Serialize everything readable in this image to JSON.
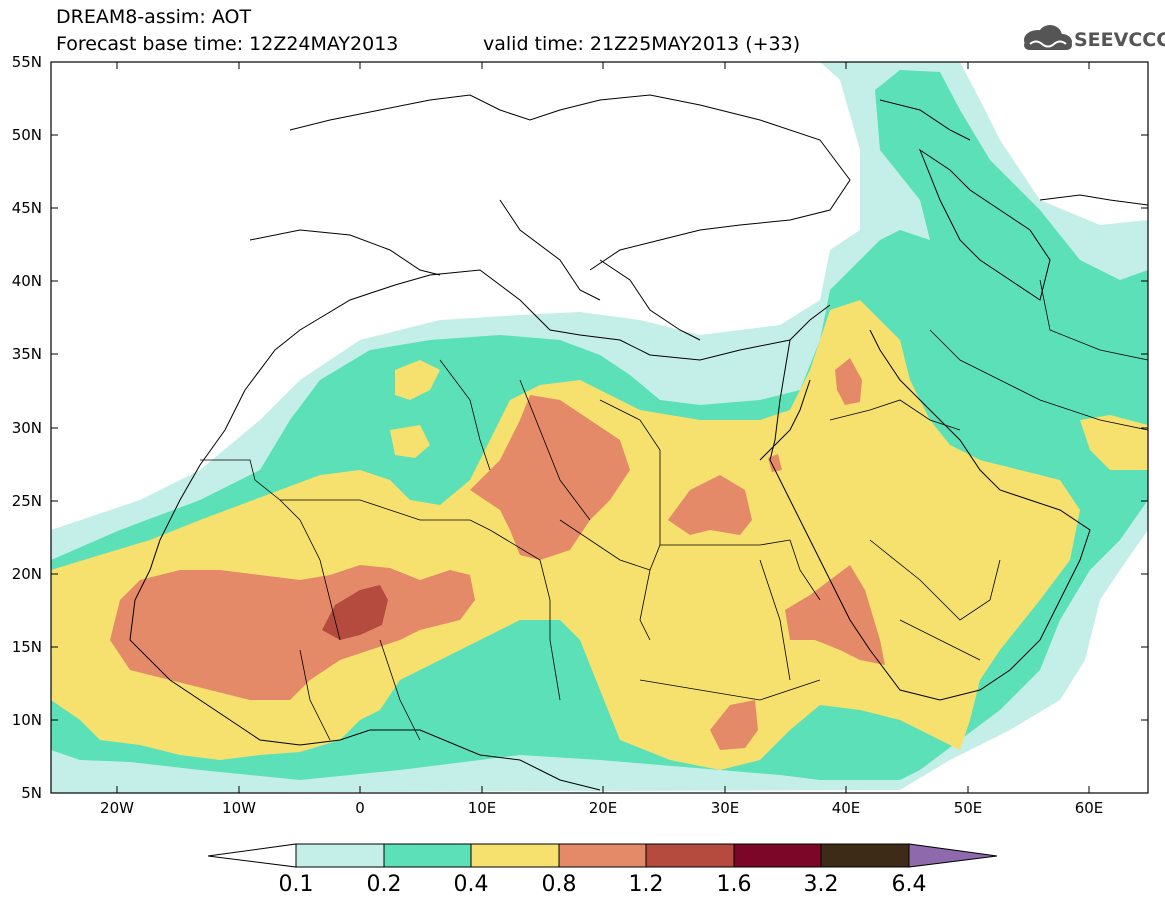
{
  "header": {
    "model_title": "DREAM8-assim: AOT",
    "forecast_base": "Forecast base time: 12Z24MAY2013",
    "valid_time": "valid time: 21Z25MAY2013 (+33)"
  },
  "logo": {
    "text": "SEEVCCC",
    "icon": "cloud-icon"
  },
  "map": {
    "lat_labels": [
      "55N",
      "50N",
      "45N",
      "40N",
      "35N",
      "30N",
      "25N",
      "20N",
      "15N",
      "10N",
      "5N"
    ],
    "lon_labels": [
      "20W",
      "10W",
      "0",
      "10E",
      "20E",
      "30E",
      "40E",
      "50E",
      "60E"
    ],
    "field_colors": {
      "level_0_1": "#c3efe8",
      "level_0_2": "#5ce0b8",
      "level_0_4": "#f6e06e",
      "level_0_8": "#e58a69",
      "level_1_2": "#b54b3e",
      "level_1_6": "#7c0628",
      "level_3_2": "#3d2a17",
      "level_6_4": "#8e6aac"
    }
  },
  "colorbar": {
    "labels": [
      "0.1",
      "0.2",
      "0.4",
      "0.8",
      "1.2",
      "1.6",
      "3.2",
      "6.4"
    ],
    "colors": [
      "#c3efe8",
      "#5ce0b8",
      "#f6e06e",
      "#e58a69",
      "#b54b3e",
      "#7c0628",
      "#3d2a17"
    ],
    "under_color": "#ffffff",
    "over_color": "#8e6aac"
  }
}
